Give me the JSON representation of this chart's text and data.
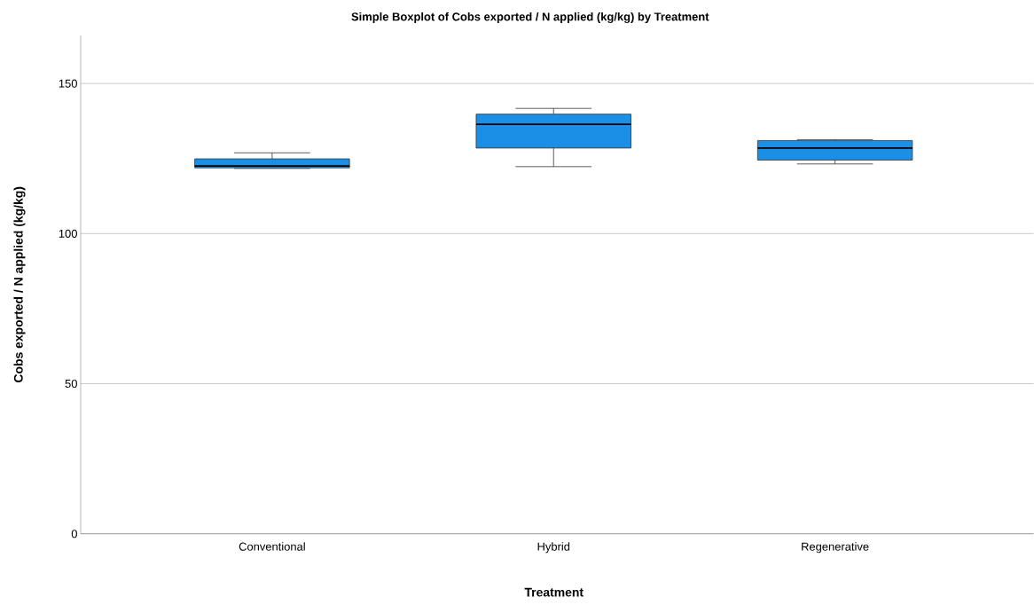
{
  "chart_data": {
    "type": "box",
    "title": "Simple Boxplot of Cobs exported / N applied (kg/kg) by Treatment",
    "xlabel": "Treatment",
    "ylabel": "Cobs exported / N applied (kg/kg)",
    "categories": [
      "Conventional",
      "Hybrid",
      "Regenerative"
    ],
    "boxes": [
      {
        "low": 121.7,
        "q1": 121.9,
        "median": 122.5,
        "q3": 124.9,
        "high": 126.9
      },
      {
        "low": 122.3,
        "q1": 128.5,
        "median": 136.4,
        "q3": 139.8,
        "high": 141.7
      },
      {
        "low": 123.2,
        "q1": 124.5,
        "median": 128.5,
        "q3": 131.0,
        "high": 131.3
      }
    ],
    "color": "#1b8fe6",
    "ylim": [
      0,
      166
    ],
    "yticks": [
      0,
      50,
      100,
      150
    ],
    "grid": "y"
  }
}
